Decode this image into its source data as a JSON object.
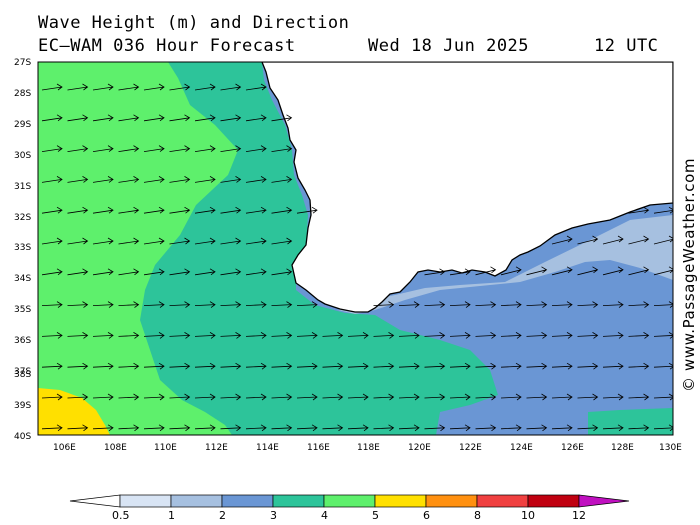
{
  "header": {
    "title": "Wave Height (m) and Direction",
    "model": "EC—WAM 036 Hour Forecast",
    "date": "Wed 18 Jun 2025",
    "time": "12 UTC"
  },
  "credit": "© www.PassageWeather.com",
  "latitude_labels": [
    "27S",
    "28S",
    "29S",
    "30S",
    "31S",
    "32S",
    "33S",
    "34S",
    "35S",
    "36S",
    "37S",
    "38S",
    "39S",
    "40S"
  ],
  "longitude_labels": [
    "106E",
    "108E",
    "110E",
    "112E",
    "114E",
    "116E",
    "118E",
    "120E",
    "122E",
    "124E",
    "126E",
    "128E",
    "130E"
  ],
  "map": {
    "lon_range": [
      105,
      130
    ],
    "lat_range": [
      -27,
      -40
    ],
    "wave_direction": "from west-southwest toward east-northeast",
    "colors": {
      "land": "#ffffff",
      "sea_4_5": "#5ef06c",
      "sea_3_4": "#2dc49a",
      "sea_2_3": "#6a96d4",
      "sea_1_2": "#a6c0e0",
      "sea_5_6": "#ffe000"
    }
  },
  "colorbar": {
    "tick_labels": [
      "0.5",
      "1",
      "2",
      "3",
      "4",
      "5",
      "6",
      "8",
      "10",
      "12"
    ],
    "colors": [
      "#ffffff",
      "#d8e4f4",
      "#a6c0e0",
      "#6a96d4",
      "#2dc49a",
      "#5ef06c",
      "#ffe000",
      "#ff9010",
      "#f04040",
      "#c00010",
      "#c010c0"
    ]
  }
}
